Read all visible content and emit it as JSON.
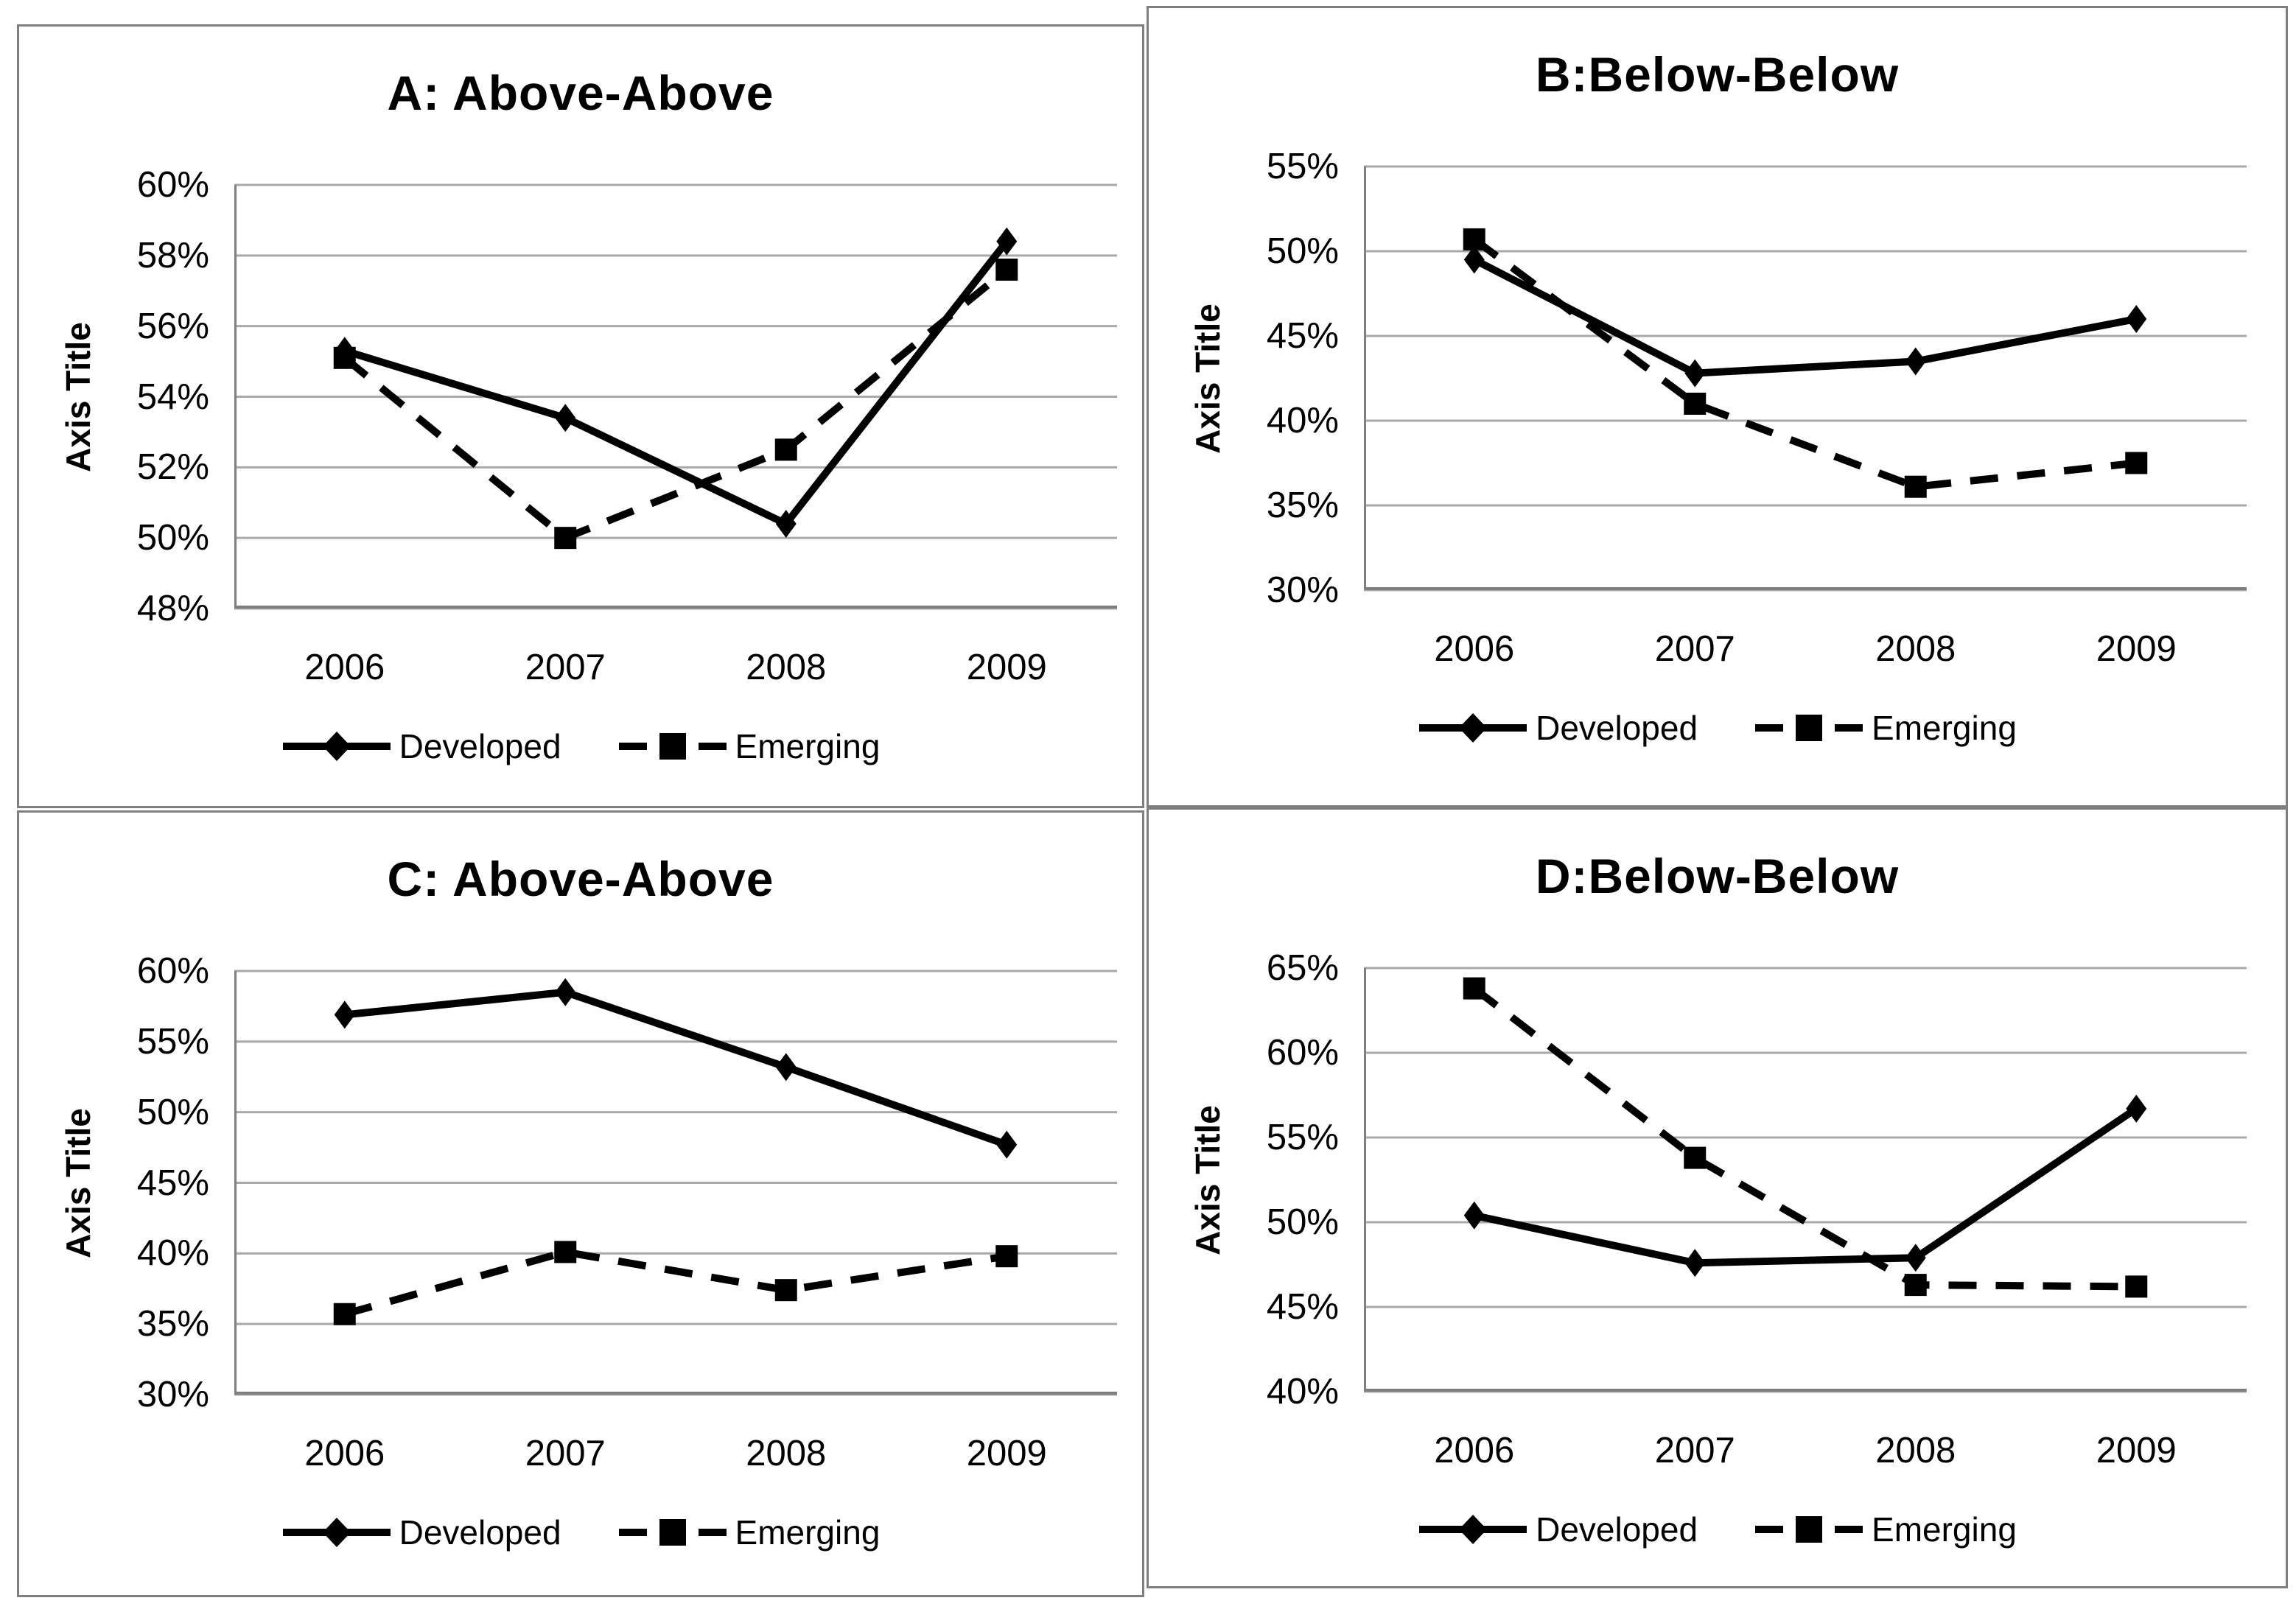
{
  "colors": {
    "background": "#ffffff",
    "panel_border": "#7f7f7f",
    "gridline": "#a9a9a9",
    "axis_line": "#7f7f7f",
    "series": "#000000",
    "text": "#000000"
  },
  "axis_title": "Axis Title",
  "legend": {
    "developed_label": "Developed",
    "emerging_label": "Emerging"
  },
  "chart_data": [
    {
      "panel": "A",
      "type": "line",
      "title": "A: Above-Above",
      "ylabel": "Axis Title",
      "xlabel": "",
      "categories": [
        "2006",
        "2007",
        "2008",
        "2009"
      ],
      "ylim": [
        48,
        60
      ],
      "yticks": [
        "60%",
        "58%",
        "56%",
        "54%",
        "52%",
        "50%",
        "48%"
      ],
      "grid": true,
      "legend_position": "bottom",
      "series": [
        {
          "name": "Developed",
          "line_style": "solid",
          "marker": "diamond",
          "values": [
            55.3,
            53.4,
            50.4,
            58.4
          ]
        },
        {
          "name": "Emerging",
          "line_style": "dashed",
          "marker": "square",
          "values": [
            55.1,
            50.0,
            52.5,
            57.6
          ]
        }
      ]
    },
    {
      "panel": "B",
      "type": "line",
      "title": "B:Below-Below",
      "ylabel": "Axis Title",
      "xlabel": "",
      "categories": [
        "2006",
        "2007",
        "2008",
        "2009"
      ],
      "ylim": [
        30,
        55
      ],
      "yticks": [
        "55%",
        "50%",
        "45%",
        "40%",
        "35%",
        "30%"
      ],
      "grid": true,
      "legend_position": "bottom",
      "series": [
        {
          "name": "Developed",
          "line_style": "solid",
          "marker": "diamond",
          "values": [
            49.5,
            42.8,
            43.5,
            46.0
          ]
        },
        {
          "name": "Emerging",
          "line_style": "dashed",
          "marker": "square",
          "values": [
            50.7,
            41.0,
            36.1,
            37.5
          ]
        }
      ]
    },
    {
      "panel": "C",
      "type": "line",
      "title": "C: Above-Above",
      "ylabel": "Axis Title",
      "xlabel": "",
      "categories": [
        "2006",
        "2007",
        "2008",
        "2009"
      ],
      "ylim": [
        30,
        60
      ],
      "yticks": [
        "60%",
        "55%",
        "50%",
        "45%",
        "40%",
        "35%",
        "30%"
      ],
      "grid": true,
      "legend_position": "bottom",
      "series": [
        {
          "name": "Developed",
          "line_style": "solid",
          "marker": "diamond",
          "values": [
            56.9,
            58.5,
            53.2,
            47.7
          ]
        },
        {
          "name": "Emerging",
          "line_style": "dashed",
          "marker": "square",
          "values": [
            35.7,
            40.1,
            37.4,
            39.8
          ]
        }
      ]
    },
    {
      "panel": "D",
      "type": "line",
      "title": "D:Below-Below",
      "ylabel": "Axis Title",
      "xlabel": "",
      "categories": [
        "2006",
        "2007",
        "2008",
        "2009"
      ],
      "ylim": [
        40,
        65
      ],
      "yticks": [
        "65%",
        "60%",
        "55%",
        "50%",
        "45%",
        "40%"
      ],
      "grid": true,
      "legend_position": "bottom",
      "series": [
        {
          "name": "Developed",
          "line_style": "solid",
          "marker": "diamond",
          "values": [
            50.4,
            47.6,
            47.9,
            56.7
          ]
        },
        {
          "name": "Emerging",
          "line_style": "dashed",
          "marker": "square",
          "values": [
            63.8,
            53.8,
            46.3,
            46.2
          ]
        }
      ]
    }
  ]
}
